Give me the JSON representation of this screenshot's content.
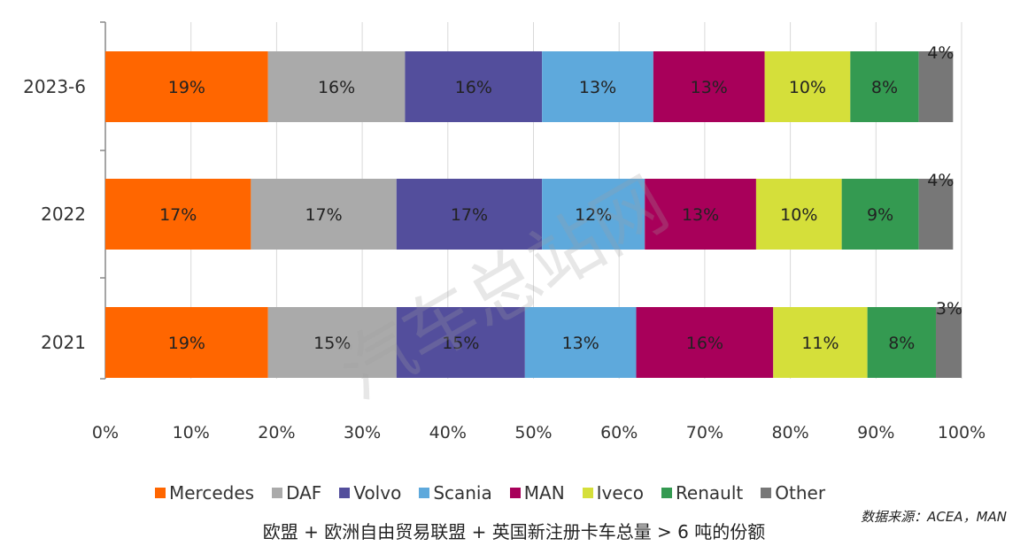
{
  "chart_data": {
    "type": "bar",
    "orientation": "horizontal",
    "stacked": true,
    "categories": [
      "2023-6",
      "2022",
      "2021"
    ],
    "series": [
      {
        "name": "Mercedes",
        "color": "#FF6600",
        "values": [
          19,
          17,
          19
        ],
        "labels": [
          "19%",
          "17%",
          "19%"
        ]
      },
      {
        "name": "DAF",
        "color": "#AAAAAA",
        "values": [
          16,
          17,
          15
        ],
        "labels": [
          "16%",
          "17%",
          "15%"
        ]
      },
      {
        "name": "Volvo",
        "color": "#534E9C",
        "values": [
          16,
          17,
          15
        ],
        "labels": [
          "16%",
          "17%",
          "15%"
        ]
      },
      {
        "name": "Scania",
        "color": "#5EA9DC",
        "values": [
          13,
          12,
          13
        ],
        "labels": [
          "13%",
          "12%",
          "13%"
        ]
      },
      {
        "name": "MAN",
        "color": "#A8005A",
        "values": [
          13,
          13,
          16
        ],
        "labels": [
          "13%",
          "13%",
          "16%"
        ]
      },
      {
        "name": "Iveco",
        "color": "#D5DF3A",
        "values": [
          10,
          10,
          11
        ],
        "labels": [
          "10%",
          "10%",
          "11%"
        ]
      },
      {
        "name": "Renault",
        "color": "#349A51",
        "values": [
          8,
          9,
          8
        ],
        "labels": [
          "8%",
          "9%",
          "8%"
        ]
      },
      {
        "name": "Other",
        "color": "#777777",
        "values": [
          4,
          4,
          3
        ],
        "labels": [
          "4%",
          "4%",
          "3%"
        ]
      }
    ],
    "xlim": [
      0,
      100
    ],
    "xticks": [
      "0%",
      "10%",
      "20%",
      "30%",
      "40%",
      "50%",
      "60%",
      "70%",
      "80%",
      "90%",
      "100%"
    ],
    "grid": "vertical",
    "legend_position": "bottom"
  },
  "caption": "欧盟 + 欧洲自由贸易联盟 + 英国新注册卡车总量 > 6 吨的份额",
  "source": "数据来源：ACEA，MAN",
  "watermark": "汽车总站网"
}
